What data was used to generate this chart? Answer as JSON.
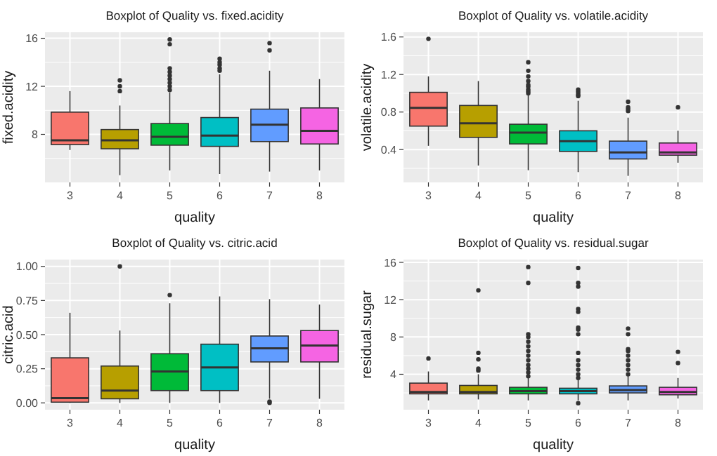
{
  "chart_data": [
    {
      "type": "box",
      "title": "Boxplot of Quality vs. fixed.acidity",
      "xlabel": "quality",
      "ylabel": "fixed.acidity",
      "categories": [
        "3",
        "4",
        "5",
        "6",
        "7",
        "8"
      ],
      "colors": [
        "#f8766d",
        "#b79f00",
        "#00ba38",
        "#00bfc4",
        "#619cff",
        "#f564e3"
      ],
      "ylim": [
        4,
        16.5
      ],
      "yticks": [
        8,
        12,
        16
      ],
      "grid": true,
      "boxes": [
        {
          "low": 6.7,
          "q1": 7.15,
          "median": 7.5,
          "q3": 9.85,
          "high": 11.6
        },
        {
          "low": 4.6,
          "q1": 6.8,
          "median": 7.5,
          "q3": 8.4,
          "high": 10.4,
          "outliers": [
            11.6,
            12.0,
            12.5
          ]
        },
        {
          "low": 5.0,
          "q1": 7.1,
          "median": 7.8,
          "q3": 8.9,
          "high": 11.5,
          "outliers": [
            11.7,
            12.0,
            12.3,
            12.6,
            12.9,
            13.2,
            13.5,
            15.5,
            15.9
          ]
        },
        {
          "low": 4.7,
          "q1": 7.0,
          "median": 7.9,
          "q3": 9.4,
          "high": 13.0,
          "outliers": [
            13.3,
            13.5,
            13.8,
            14.0,
            14.3
          ]
        },
        {
          "low": 4.9,
          "q1": 7.4,
          "median": 8.8,
          "q3": 10.1,
          "high": 13.3,
          "outliers": [
            15.0,
            15.6
          ]
        },
        {
          "low": 5.0,
          "q1": 7.2,
          "median": 8.3,
          "q3": 10.2,
          "high": 12.6
        }
      ]
    },
    {
      "type": "box",
      "title": "Boxplot of Quality vs. volatile.acidity",
      "xlabel": "quality",
      "ylabel": "volatile.acidity",
      "categories": [
        "3",
        "4",
        "5",
        "6",
        "7",
        "8"
      ],
      "colors": [
        "#f8766d",
        "#b79f00",
        "#00ba38",
        "#00bfc4",
        "#619cff",
        "#f564e3"
      ],
      "ylim": [
        0.05,
        1.65
      ],
      "yticks": [
        0.4,
        0.8,
        1.2,
        1.6
      ],
      "grid": true,
      "boxes": [
        {
          "low": 0.44,
          "q1": 0.65,
          "median": 0.845,
          "q3": 1.01,
          "high": 1.18,
          "outliers": [
            1.58
          ]
        },
        {
          "low": 0.23,
          "q1": 0.53,
          "median": 0.68,
          "q3": 0.87,
          "high": 1.13
        },
        {
          "low": 0.18,
          "q1": 0.46,
          "median": 0.58,
          "q3": 0.67,
          "high": 0.98,
          "outliers": [
            1.0,
            1.02,
            1.04,
            1.07,
            1.09,
            1.13,
            1.18,
            1.24,
            1.33
          ]
        },
        {
          "low": 0.16,
          "q1": 0.38,
          "median": 0.49,
          "q3": 0.6,
          "high": 0.92,
          "outliers": [
            0.97,
            0.98,
            1.0,
            1.02,
            1.04
          ]
        },
        {
          "low": 0.12,
          "q1": 0.3,
          "median": 0.37,
          "q3": 0.49,
          "high": 0.74,
          "outliers": [
            0.81,
            0.83,
            0.85,
            0.91
          ]
        },
        {
          "low": 0.26,
          "q1": 0.34,
          "median": 0.37,
          "q3": 0.47,
          "high": 0.6,
          "outliers": [
            0.85
          ]
        }
      ]
    },
    {
      "type": "box",
      "title": "Boxplot of Quality vs. citric.acid",
      "xlabel": "quality",
      "ylabel": "citric.acid",
      "categories": [
        "3",
        "4",
        "5",
        "6",
        "7",
        "8"
      ],
      "colors": [
        "#f8766d",
        "#b79f00",
        "#00ba38",
        "#00bfc4",
        "#619cff",
        "#f564e3"
      ],
      "ylim": [
        -0.05,
        1.05
      ],
      "yticks": [
        {
          "value": 0,
          "label": "0.00"
        },
        {
          "value": 0.25,
          "label": "0.25"
        },
        {
          "value": 0.5,
          "label": "0.50"
        },
        {
          "value": 0.75,
          "label": "0.75"
        },
        {
          "value": 1,
          "label": "1.00"
        }
      ],
      "grid": true,
      "boxes": [
        {
          "low": 0,
          "q1": 0.005,
          "median": 0.035,
          "q3": 0.33,
          "high": 0.66
        },
        {
          "low": 0,
          "q1": 0.03,
          "median": 0.09,
          "q3": 0.27,
          "high": 0.53,
          "outliers": [
            1.0
          ]
        },
        {
          "low": 0,
          "q1": 0.09,
          "median": 0.23,
          "q3": 0.36,
          "high": 0.73,
          "outliers": [
            0.79
          ]
        },
        {
          "low": 0,
          "q1": 0.09,
          "median": 0.26,
          "q3": 0.43,
          "high": 0.78
        },
        {
          "low": 0.03,
          "q1": 0.3,
          "median": 0.4,
          "q3": 0.49,
          "high": 0.76,
          "outliers": [
            0,
            0.01
          ]
        },
        {
          "low": 0.03,
          "q1": 0.3,
          "median": 0.42,
          "q3": 0.53,
          "high": 0.72
        }
      ]
    },
    {
      "type": "box",
      "title": "Boxplot of Quality vs. residual.sugar",
      "xlabel": "quality",
      "ylabel": "residual.sugar",
      "categories": [
        "3",
        "4",
        "5",
        "6",
        "7",
        "8"
      ],
      "colors": [
        "#f8766d",
        "#b79f00",
        "#00ba38",
        "#00bfc4",
        "#619cff",
        "#f564e3"
      ],
      "ylim": [
        0.2,
        16.3
      ],
      "yticks": [
        4,
        8,
        12,
        16
      ],
      "grid": true,
      "boxes": [
        {
          "low": 1.2,
          "q1": 1.9,
          "median": 2.1,
          "q3": 3.05,
          "high": 4.3,
          "outliers": [
            5.7
          ]
        },
        {
          "low": 1.3,
          "q1": 1.9,
          "median": 2.1,
          "q3": 2.8,
          "high": 4.0,
          "outliers": [
            4.4,
            4.6,
            5.6,
            6.3,
            13.0
          ]
        },
        {
          "low": 1.2,
          "q1": 1.9,
          "median": 2.2,
          "q3": 2.6,
          "high": 3.6,
          "outliers": [
            3.8,
            4.2,
            4.6,
            5.0,
            5.5,
            6.0,
            6.5,
            7.0,
            7.5,
            8.0,
            8.3,
            13.8,
            15.5
          ]
        },
        {
          "low": 1.2,
          "q1": 1.9,
          "median": 2.2,
          "q3": 2.5,
          "high": 3.4,
          "outliers": [
            0.9,
            3.6,
            4.0,
            4.5,
            5.0,
            5.5,
            6.3,
            8.3,
            8.8,
            9.0,
            10.7,
            11.0,
            13.4,
            13.8,
            15.4
          ]
        },
        {
          "low": 1.2,
          "q1": 2.0,
          "median": 2.3,
          "q3": 2.75,
          "high": 3.8,
          "outliers": [
            4.0,
            4.5,
            5.0,
            5.5,
            6.0,
            6.5,
            6.7,
            8.3,
            8.9
          ]
        },
        {
          "low": 1.4,
          "q1": 1.8,
          "median": 2.1,
          "q3": 2.6,
          "high": 3.6,
          "outliers": [
            5.2,
            6.4
          ]
        }
      ]
    }
  ]
}
